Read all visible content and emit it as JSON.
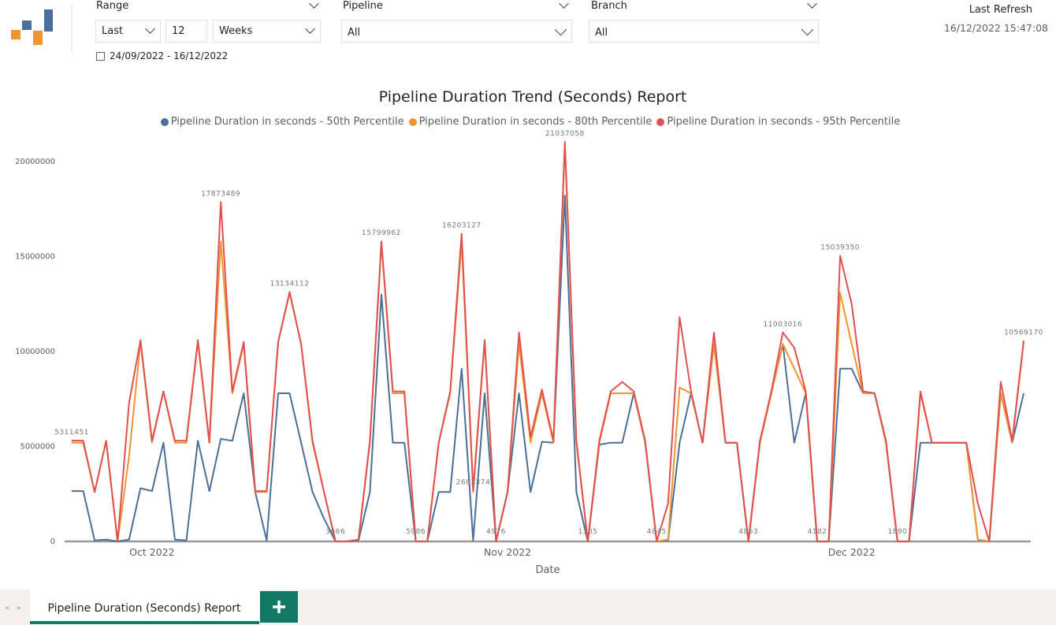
{
  "filters": {
    "range": {
      "label": "Range",
      "mode": "Last",
      "count": 12,
      "unit": "Weeks"
    },
    "pipeline": {
      "label": "Pipeline",
      "value": "All"
    },
    "branch": {
      "label": "Branch",
      "value": "All"
    },
    "date_range": "24/09/2022 - 16/12/2022"
  },
  "last_refresh": {
    "label": "Last Refresh",
    "value": "16/12/2022 15:47:08"
  },
  "tabs": [
    "Pipeline Duration (Seconds) Report"
  ],
  "chart_data": {
    "type": "line",
    "title": "Pipeline Duration Trend (Seconds) Report",
    "xlabel": "Date",
    "categories": [
      null,
      null,
      null,
      null,
      null,
      null,
      null,
      "Oct 2022",
      null,
      null,
      null,
      null,
      null,
      null,
      null,
      null,
      null,
      null,
      null,
      null,
      null,
      null,
      null,
      null,
      null,
      null,
      null,
      null,
      null,
      null,
      null,
      null,
      null,
      null,
      null,
      null,
      null,
      null,
      "Nov 2022",
      null,
      null,
      null,
      null,
      null,
      null,
      null,
      null,
      null,
      null,
      null,
      null,
      null,
      null,
      null,
      null,
      null,
      null,
      null,
      null,
      null,
      null,
      null,
      null,
      null,
      null,
      null,
      null,
      null,
      "Dec 2022",
      null,
      null,
      null,
      null,
      null,
      null,
      null,
      null,
      null,
      null,
      null,
      null,
      null,
      null,
      null
    ],
    "ylim": [
      0,
      21100000
    ],
    "yticks": [
      0,
      5000000,
      10000000,
      15000000,
      20000000
    ],
    "grid": false,
    "series": [
      {
        "name": "Pipeline Duration in seconds - 50th Percentile",
        "color": "#4b6f99",
        "values": [
          2650000,
          2650000,
          50000,
          100000,
          0,
          100000,
          2800000,
          2650000,
          5200000,
          100000,
          50000,
          5300000,
          2650000,
          5400000,
          5300000,
          7800000,
          2600000,
          50000,
          7800000,
          7800000,
          5200000,
          2600000,
          1200000,
          3666,
          0,
          50000,
          2600000,
          13000000,
          5200000,
          5200000,
          5986,
          0,
          2600000,
          2600000,
          9100000,
          50000,
          7800000,
          4976,
          2600000,
          7800000,
          2600000,
          5250000,
          5200000,
          18200000,
          2600000,
          1105,
          5100000,
          5200000,
          5200000,
          7800000,
          5200000,
          4845,
          50000,
          5200000,
          7800000,
          5200000,
          10400000,
          5200000,
          5200000,
          4863,
          5200000,
          7800000,
          10400000,
          5200000,
          7800000,
          4182,
          0,
          9100000,
          9100000,
          7800000,
          7800000,
          5200000,
          1890,
          0,
          5200000,
          5200000,
          5200000,
          5200000,
          5200000,
          100000,
          0,
          7800000,
          5200000,
          7800000
        ]
      },
      {
        "name": "Pipeline Duration in seconds - 80th Percentile",
        "color": "#f0952e",
        "values": [
          5200000,
          5200000,
          2600000,
          5300000,
          0,
          4500000,
          10500000,
          5200000,
          7900000,
          5200000,
          5200000,
          10500000,
          5200000,
          15800000,
          7800000,
          10400000,
          2600000,
          2600000,
          10500000,
          13100000,
          10400000,
          5200000,
          2600000,
          3666,
          0,
          100000,
          5200000,
          15700000,
          7800000,
          7800000,
          5986,
          0,
          5200000,
          7800000,
          15800000,
          2600000,
          10500000,
          4976,
          2600000,
          10400000,
          5200000,
          7800000,
          5200000,
          20900000,
          5200000,
          1105,
          5200000,
          7800000,
          7800000,
          7800000,
          5200000,
          4845,
          100000,
          8100000,
          7800000,
          5200000,
          10400000,
          5200000,
          5200000,
          4863,
          5200000,
          7800000,
          10400000,
          9100000,
          7800000,
          4182,
          0,
          13100000,
          10400000,
          7800000,
          7800000,
          5200000,
          1890,
          0,
          7800000,
          5200000,
          5200000,
          5200000,
          5200000,
          100000,
          0,
          7800000,
          5200000,
          10500000
        ]
      },
      {
        "name": "Pipeline Duration in seconds - 95th Percentile",
        "color": "#e0504f",
        "values": [
          5311451,
          5300000,
          2600000,
          5300000,
          0,
          7300000,
          10600000,
          5300000,
          7900000,
          5300000,
          5300000,
          10600000,
          5200000,
          17873489,
          7900000,
          10500000,
          2650000,
          2650000,
          10500000,
          13134112,
          10400000,
          5300000,
          2600000,
          3666,
          0,
          100000,
          5300000,
          15799962,
          7900000,
          7900000,
          5986,
          0,
          5200000,
          7900000,
          16203127,
          2683374,
          10600000,
          4976,
          2600000,
          11000000,
          5500000,
          8000000,
          5300000,
          21037058,
          5300000,
          1105,
          5300000,
          7900000,
          8400000,
          7900000,
          5300000,
          4845,
          2000000,
          11800000,
          7900000,
          5200000,
          11000000,
          5200000,
          5200000,
          4863,
          5300000,
          7900000,
          11003016,
          10200000,
          7900000,
          4182,
          0,
          15039350,
          12500000,
          7900000,
          7800000,
          5300000,
          1890,
          0,
          7900000,
          5200000,
          5200000,
          5200000,
          5200000,
          2000000,
          0,
          8400000,
          5300000,
          10569170
        ],
        "value_labels": [
          "5311451",
          null,
          null,
          null,
          null,
          null,
          null,
          null,
          null,
          null,
          null,
          null,
          null,
          "17873489",
          null,
          null,
          null,
          null,
          null,
          "13134112",
          null,
          null,
          null,
          "3666",
          null,
          null,
          null,
          "15799962",
          null,
          null,
          "5986",
          null,
          null,
          null,
          "16203127",
          "2683374",
          null,
          "4976",
          null,
          null,
          null,
          null,
          null,
          "21037058",
          null,
          "1105",
          null,
          null,
          null,
          null,
          null,
          "4845",
          null,
          null,
          null,
          null,
          null,
          null,
          null,
          "4863",
          null,
          null,
          "11003016",
          null,
          null,
          "4182",
          null,
          "15039350",
          null,
          null,
          null,
          null,
          "1890",
          null,
          null,
          null,
          null,
          null,
          null,
          null,
          null,
          null,
          null,
          "10569170"
        ]
      }
    ]
  }
}
